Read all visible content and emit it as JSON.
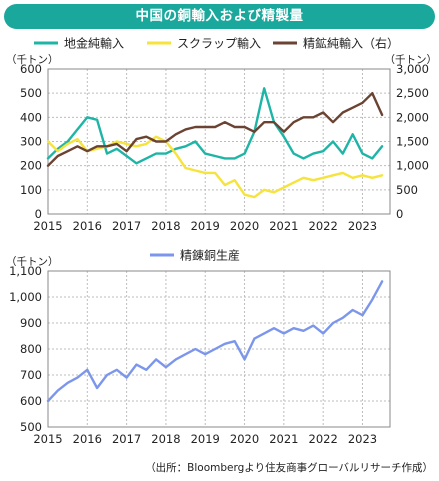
{
  "title": "中国の銅輸入および精製量",
  "source_note": "（出所：Bloombergより住友商事グローバルリサーチ作成）",
  "colors": {
    "title_bg": "#1aa89d",
    "chart1_series": [
      "#1fb5a6",
      "#f6e33b",
      "#6b4332"
    ],
    "chart2_series": [
      "#7c96ec"
    ]
  },
  "chart_data": [
    {
      "type": "line",
      "unit_left": "（千トン）",
      "unit_right": "（千トン）",
      "ylim": [
        0,
        600
      ],
      "ylim_right": [
        0,
        3000
      ],
      "y_ticks": [
        0,
        100,
        200,
        300,
        400,
        500,
        600
      ],
      "y_ticks_right": [
        0,
        500,
        1000,
        1500,
        2000,
        2500,
        3000
      ],
      "y_tick_labels_right": [
        "0",
        "500",
        "1,000",
        "1,500",
        "2,000",
        "2,500",
        "3,000"
      ],
      "x_ticks": [
        "2015",
        "2016",
        "2017",
        "2018",
        "2019",
        "2020",
        "2021",
        "2022",
        "2023"
      ],
      "x_positions": [
        2015,
        2016,
        2017,
        2018,
        2019,
        2020,
        2021,
        2022,
        2023
      ],
      "xlim": [
        2015,
        2023.7
      ],
      "grid": true,
      "legend_position": "top",
      "x": [
        2015.0,
        2015.25,
        2015.5,
        2015.75,
        2016.0,
        2016.25,
        2016.5,
        2016.75,
        2017.0,
        2017.25,
        2017.5,
        2017.75,
        2018.0,
        2018.25,
        2018.5,
        2018.75,
        2019.0,
        2019.25,
        2019.5,
        2019.75,
        2020.0,
        2020.25,
        2020.5,
        2020.75,
        2021.0,
        2021.25,
        2021.5,
        2021.75,
        2022.0,
        2022.25,
        2022.5,
        2022.75,
        2023.0,
        2023.25,
        2023.5
      ],
      "series": [
        {
          "name": "地金純輸入",
          "axis": "left",
          "values": [
            230,
            270,
            300,
            350,
            400,
            390,
            250,
            270,
            240,
            210,
            230,
            250,
            250,
            270,
            280,
            300,
            250,
            240,
            230,
            230,
            250,
            340,
            520,
            380,
            320,
            250,
            230,
            250,
            260,
            300,
            250,
            330,
            250,
            230,
            280
          ]
        },
        {
          "name": "スクラップ輸入",
          "axis": "left",
          "values": [
            300,
            260,
            290,
            310,
            260,
            270,
            280,
            300,
            290,
            280,
            290,
            320,
            300,
            250,
            190,
            180,
            170,
            170,
            120,
            140,
            80,
            70,
            100,
            90,
            110,
            130,
            150,
            140,
            150,
            160,
            170,
            150,
            160,
            150,
            160
          ]
        },
        {
          "name": "精鉱純輸入（右）",
          "axis": "right",
          "values": [
            1000,
            1200,
            1300,
            1400,
            1300,
            1400,
            1400,
            1450,
            1300,
            1550,
            1600,
            1500,
            1500,
            1650,
            1750,
            1800,
            1800,
            1800,
            1900,
            1800,
            1800,
            1700,
            1900,
            1900,
            1700,
            1900,
            2000,
            2000,
            2100,
            1900,
            2100,
            2200,
            2300,
            2500,
            2050
          ]
        }
      ]
    },
    {
      "type": "line",
      "unit_left": "（千トン）",
      "ylim": [
        500,
        1100
      ],
      "y_ticks": [
        500,
        600,
        700,
        800,
        900,
        1000,
        1100
      ],
      "y_tick_labels": [
        "500",
        "600",
        "700",
        "800",
        "900",
        "1,000",
        "1,100"
      ],
      "x_ticks": [
        "2015",
        "2016",
        "2017",
        "2018",
        "2019",
        "2020",
        "2021",
        "2022",
        "2023"
      ],
      "x_positions": [
        2015,
        2016,
        2017,
        2018,
        2019,
        2020,
        2021,
        2022,
        2023
      ],
      "xlim": [
        2015,
        2023.7
      ],
      "grid": true,
      "legend_position": "top",
      "x": [
        2015.0,
        2015.25,
        2015.5,
        2015.75,
        2016.0,
        2016.25,
        2016.5,
        2016.75,
        2017.0,
        2017.25,
        2017.5,
        2017.75,
        2018.0,
        2018.25,
        2018.5,
        2018.75,
        2019.0,
        2019.25,
        2019.5,
        2019.75,
        2020.0,
        2020.25,
        2020.5,
        2020.75,
        2021.0,
        2021.25,
        2021.5,
        2021.75,
        2022.0,
        2022.25,
        2022.5,
        2022.75,
        2023.0,
        2023.25,
        2023.5
      ],
      "series": [
        {
          "name": "精錬銅生産",
          "axis": "left",
          "values": [
            600,
            640,
            670,
            690,
            720,
            650,
            700,
            720,
            690,
            740,
            720,
            760,
            730,
            760,
            780,
            800,
            780,
            800,
            820,
            830,
            760,
            840,
            860,
            880,
            860,
            880,
            870,
            890,
            860,
            900,
            920,
            950,
            930,
            990,
            1060
          ]
        }
      ]
    }
  ]
}
